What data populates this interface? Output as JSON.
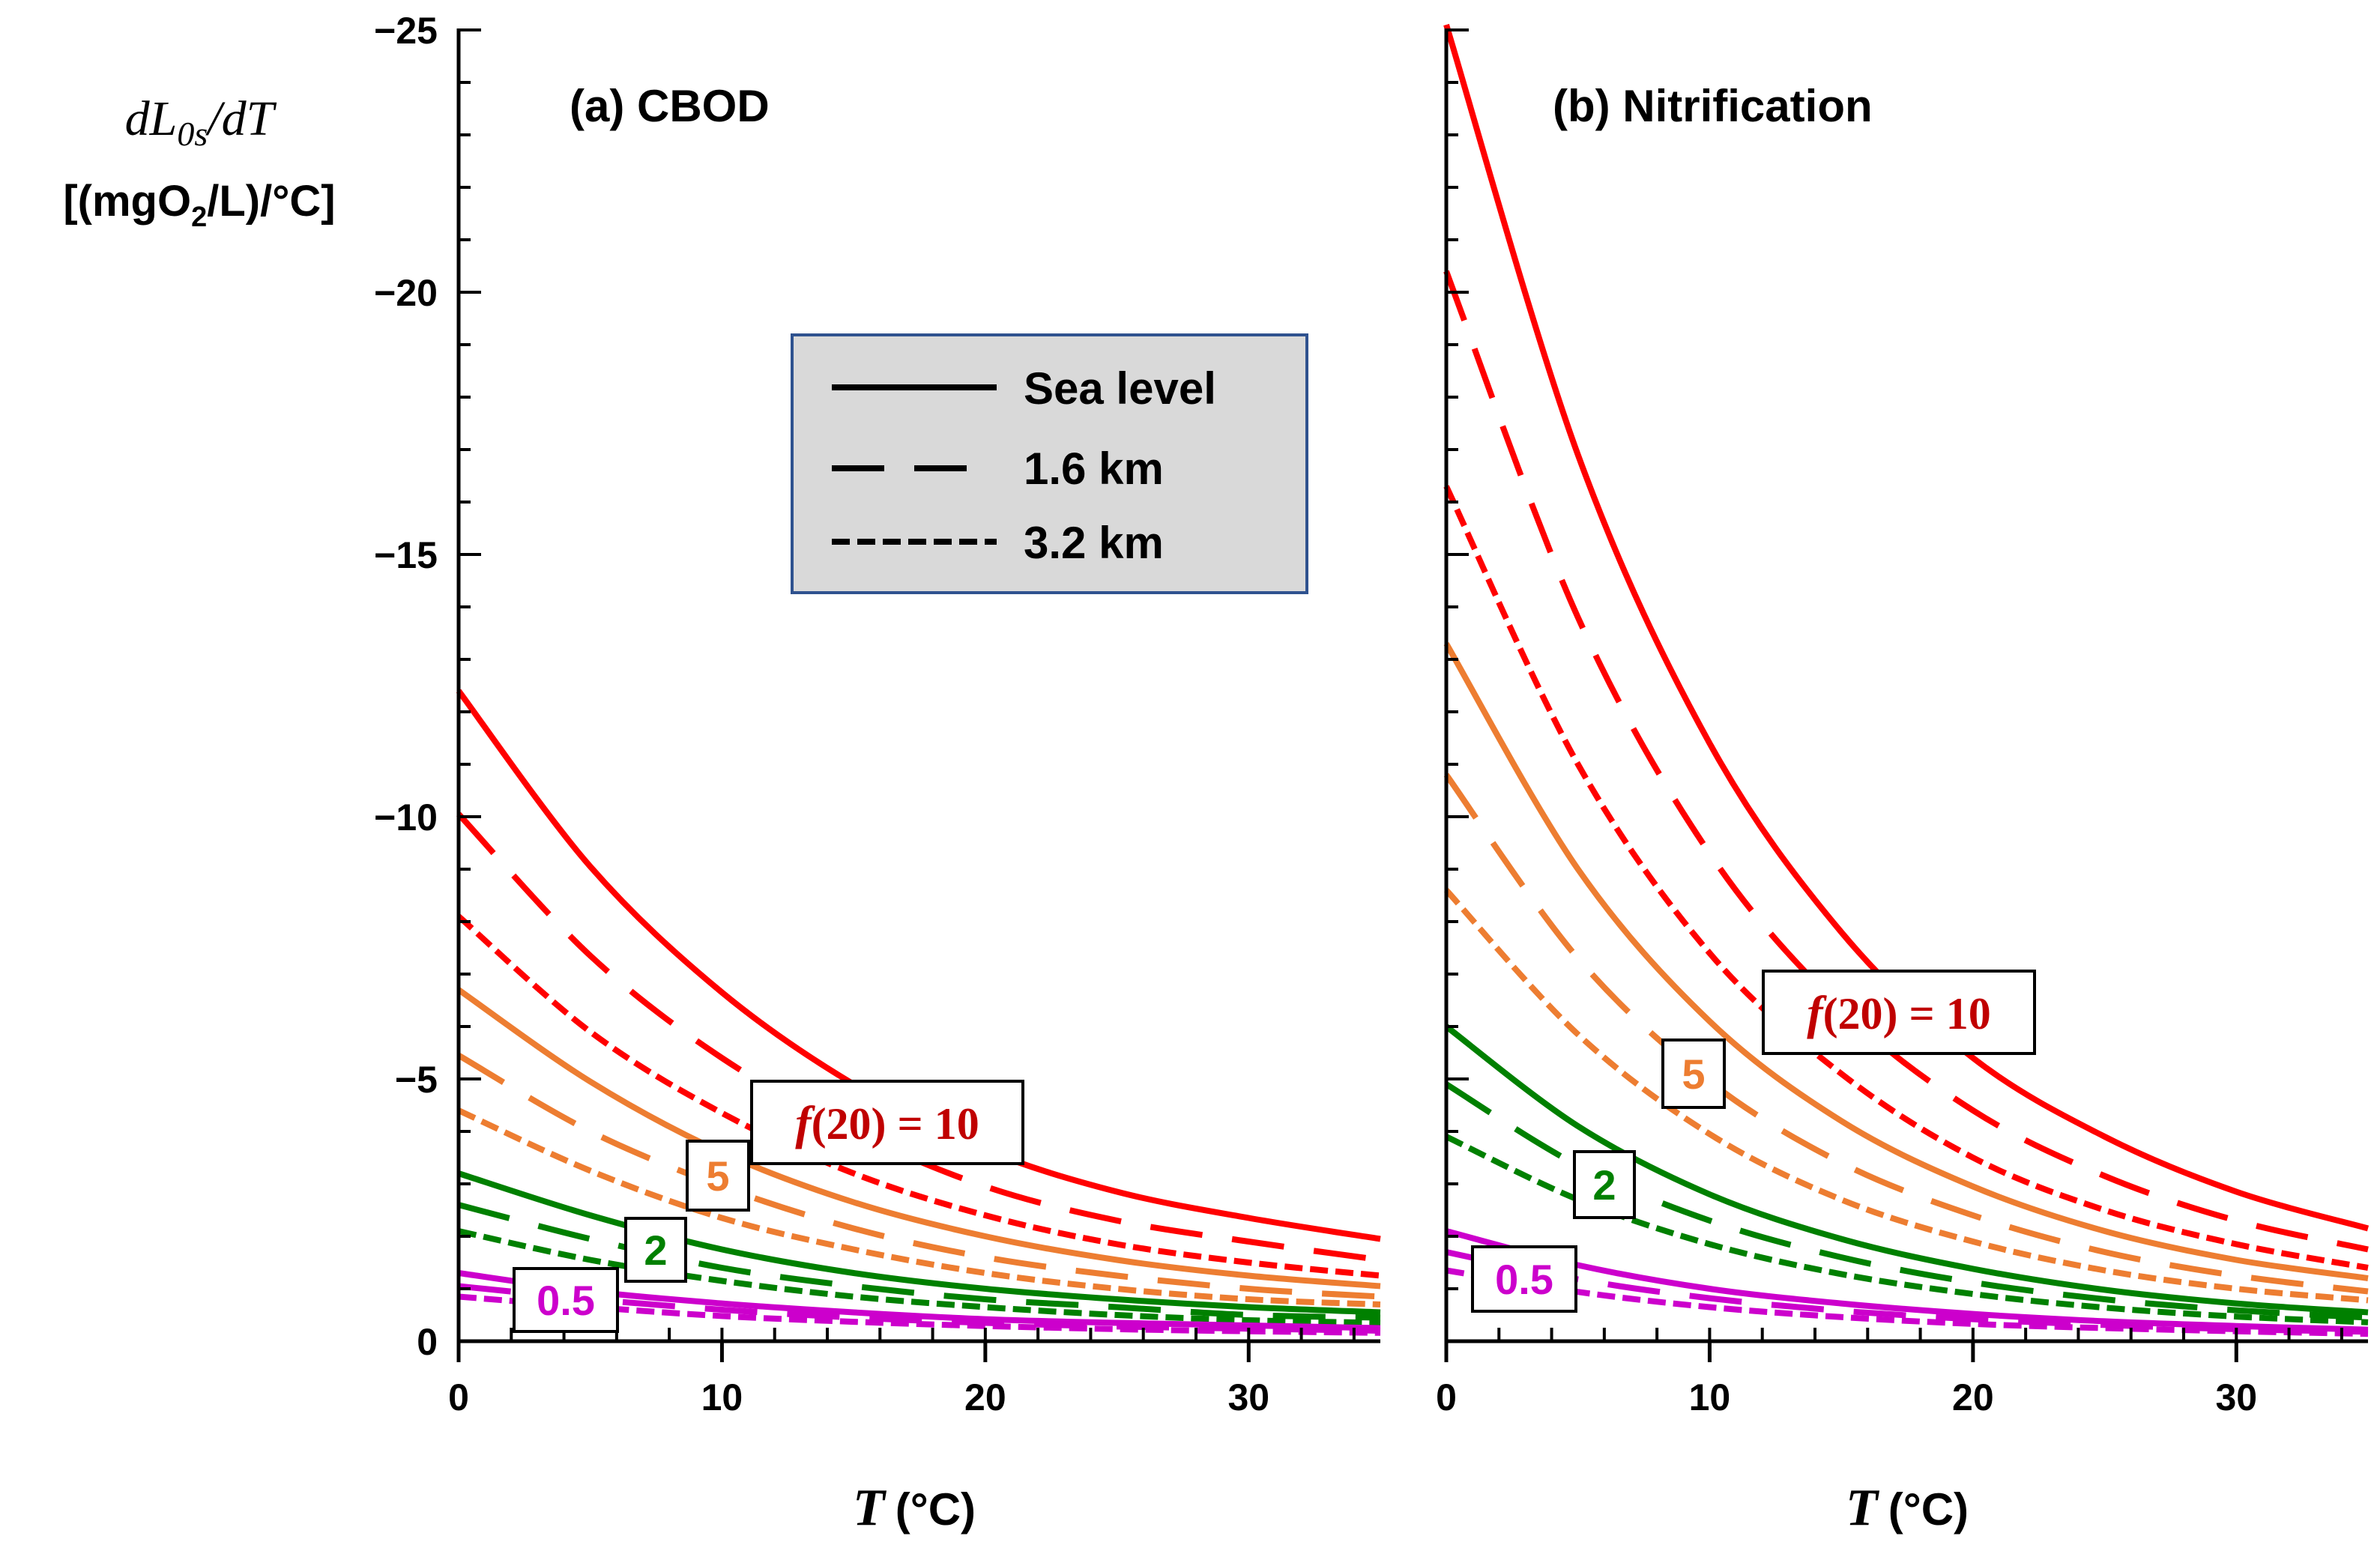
{
  "chart_data": {
    "type": "line",
    "ylabel_line1": "dL0s/dT",
    "ylabel_line1_main": "dL",
    "ylabel_line1_sub": "0s",
    "ylabel_line1_tail": "/dT",
    "ylabel_line2_a": "[(mgO",
    "ylabel_line2_sub": "2",
    "ylabel_line2_b": "/L)/°C]",
    "xlabel_var": "T",
    "xlabel_unit": "(°C)",
    "xlim": [
      0,
      35
    ],
    "ylim": [
      0,
      -25
    ],
    "x_ticks": [
      "0",
      "10",
      "20",
      "30"
    ],
    "x_tick_values": [
      0,
      10,
      20,
      30
    ],
    "y_ticks": [
      "0",
      "−5",
      "−10",
      "−15",
      "−20",
      "−25"
    ],
    "y_tick_values": [
      0,
      -5,
      -10,
      -15,
      -20,
      -25
    ],
    "legend": {
      "placement": "top-center",
      "entries": [
        {
          "label": "Sea level",
          "style": "solid"
        },
        {
          "label": "1.6 km",
          "style": "long-dash"
        },
        {
          "label": "3.2 km",
          "style": "short-dash"
        }
      ]
    },
    "colors": {
      "10": "#ff0000",
      "5": "#ed7d31",
      "2": "#008000",
      "0.5": "#cc00cc",
      "label_10": "#c00000"
    },
    "x": [
      0,
      5,
      10,
      15,
      20,
      25,
      30,
      35
    ],
    "panels": [
      {
        "title": "(a) CBOD",
        "curve_labels": [
          {
            "text": "f(20) = 10",
            "f_part": "f",
            "rest": "(20) = 10",
            "color_key": "label_10"
          },
          {
            "text": "5",
            "color_key": "5"
          },
          {
            "text": "2",
            "color_key": "2"
          },
          {
            "text": "0.5",
            "color_key": "0.5"
          }
        ],
        "series": [
          {
            "f20": "10",
            "altitude": "Sea level",
            "style": "solid",
            "values": [
              -12.4,
              -9.05,
              -6.65,
              -4.9,
              -3.65,
              -2.85,
              -2.35,
              -1.95
            ]
          },
          {
            "f20": "10",
            "altitude": "1.6 km",
            "style": "long-dash",
            "values": [
              -10.05,
              -7.35,
              -5.4,
              -4.0,
              -2.95,
              -2.3,
              -1.9,
              -1.55
            ]
          },
          {
            "f20": "10",
            "altitude": "3.2 km",
            "style": "short-dash",
            "values": [
              -8.1,
              -5.9,
              -4.35,
              -3.2,
              -2.4,
              -1.85,
              -1.5,
              -1.25
            ]
          },
          {
            "f20": "5",
            "altitude": "Sea level",
            "style": "solid",
            "values": [
              -6.7,
              -4.95,
              -3.6,
              -2.65,
              -2.0,
              -1.55,
              -1.25,
              -1.05
            ]
          },
          {
            "f20": "5",
            "altitude": "1.6 km",
            "style": "long-dash",
            "values": [
              -5.45,
              -4.0,
              -2.95,
              -2.15,
              -1.6,
              -1.25,
              -1.0,
              -0.85
            ]
          },
          {
            "f20": "5",
            "altitude": "3.2 km",
            "style": "short-dash",
            "values": [
              -4.4,
              -3.25,
              -2.35,
              -1.75,
              -1.3,
              -1.0,
              -0.8,
              -0.7
            ]
          },
          {
            "f20": "2",
            "altitude": "Sea level",
            "style": "solid",
            "values": [
              -3.2,
              -2.4,
              -1.75,
              -1.3,
              -1.0,
              -0.8,
              -0.65,
              -0.55
            ]
          },
          {
            "f20": "2",
            "altitude": "1.6 km",
            "style": "long-dash",
            "values": [
              -2.6,
              -1.95,
              -1.4,
              -1.05,
              -0.8,
              -0.65,
              -0.5,
              -0.45
            ]
          },
          {
            "f20": "2",
            "altitude": "3.2 km",
            "style": "short-dash",
            "values": [
              -2.1,
              -1.55,
              -1.15,
              -0.85,
              -0.65,
              -0.5,
              -0.4,
              -0.35
            ]
          },
          {
            "f20": "0.5",
            "altitude": "Sea level",
            "style": "solid",
            "values": [
              -1.3,
              -0.95,
              -0.72,
              -0.55,
              -0.42,
              -0.35,
              -0.3,
              -0.25
            ]
          },
          {
            "f20": "0.5",
            "altitude": "1.6 km",
            "style": "long-dash",
            "values": [
              -1.05,
              -0.8,
              -0.6,
              -0.45,
              -0.35,
              -0.28,
              -0.24,
              -0.2
            ]
          },
          {
            "f20": "0.5",
            "altitude": "3.2 km",
            "style": "short-dash",
            "values": [
              -0.85,
              -0.65,
              -0.48,
              -0.37,
              -0.29,
              -0.23,
              -0.19,
              -0.16
            ]
          }
        ]
      },
      {
        "title": "(b) Nitrification",
        "curve_labels": [
          {
            "text": "f(20) = 10",
            "f_part": "f",
            "rest": "(20) = 10",
            "color_key": "label_10"
          },
          {
            "text": "5",
            "color_key": "5"
          },
          {
            "text": "2",
            "color_key": "2"
          },
          {
            "text": "0.5",
            "color_key": "0.5"
          }
        ],
        "series": [
          {
            "f20": "10",
            "altitude": "Sea level",
            "style": "solid",
            "values": [
              -25.1,
              -16.9,
              -11.4,
              -7.8,
              -5.4,
              -3.9,
              -2.85,
              -2.15
            ]
          },
          {
            "f20": "10",
            "altitude": "1.6 km",
            "style": "long-dash",
            "values": [
              -20.4,
              -13.8,
              -9.3,
              -6.35,
              -4.4,
              -3.15,
              -2.3,
              -1.75
            ]
          },
          {
            "f20": "10",
            "altitude": "3.2 km",
            "style": "short-dash",
            "values": [
              -16.3,
              -11.0,
              -7.4,
              -5.1,
              -3.5,
              -2.5,
              -1.85,
              -1.4
            ]
          },
          {
            "f20": "5",
            "altitude": "Sea level",
            "style": "solid",
            "values": [
              -13.3,
              -9.0,
              -6.1,
              -4.2,
              -2.95,
              -2.1,
              -1.55,
              -1.2
            ]
          },
          {
            "f20": "5",
            "altitude": "1.6 km",
            "style": "long-dash",
            "values": [
              -10.8,
              -7.3,
              -4.95,
              -3.4,
              -2.4,
              -1.7,
              -1.25,
              -0.95
            ]
          },
          {
            "f20": "5",
            "altitude": "3.2 km",
            "style": "short-dash",
            "values": [
              -8.6,
              -5.85,
              -3.95,
              -2.7,
              -1.9,
              -1.35,
              -1.0,
              -0.78
            ]
          },
          {
            "f20": "2",
            "altitude": "Sea level",
            "style": "solid",
            "values": [
              -6.0,
              -4.1,
              -2.8,
              -1.95,
              -1.38,
              -0.98,
              -0.72,
              -0.55
            ]
          },
          {
            "f20": "2",
            "altitude": "1.6 km",
            "style": "long-dash",
            "values": [
              -4.9,
              -3.35,
              -2.3,
              -1.6,
              -1.12,
              -0.8,
              -0.59,
              -0.45
            ]
          },
          {
            "f20": "2",
            "altitude": "3.2 km",
            "style": "short-dash",
            "values": [
              -3.9,
              -2.7,
              -1.85,
              -1.28,
              -0.9,
              -0.64,
              -0.47,
              -0.36
            ]
          },
          {
            "f20": "0.5",
            "altitude": "Sea level",
            "style": "solid",
            "values": [
              -2.1,
              -1.45,
              -1.0,
              -0.72,
              -0.52,
              -0.38,
              -0.29,
              -0.22
            ]
          },
          {
            "f20": "0.5",
            "altitude": "1.6 km",
            "style": "long-dash",
            "values": [
              -1.7,
              -1.18,
              -0.82,
              -0.58,
              -0.42,
              -0.31,
              -0.23,
              -0.18
            ]
          },
          {
            "f20": "0.5",
            "altitude": "3.2 km",
            "style": "short-dash",
            "values": [
              -1.35,
              -0.94,
              -0.65,
              -0.46,
              -0.33,
              -0.25,
              -0.19,
              -0.14
            ]
          }
        ]
      }
    ]
  }
}
